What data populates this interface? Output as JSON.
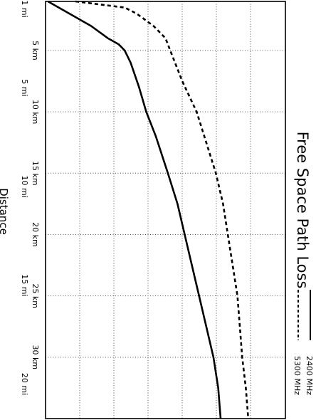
{
  "chart_data": {
    "type": "line",
    "title": "Free Space Path Loss",
    "xlabel": "Distance",
    "ylabel": "",
    "orientation": "rotated-90-clockwise",
    "x_unit": "km",
    "xlim": [
      1,
      35
    ],
    "x_ticks_km": [
      {
        "value": 5,
        "label": "5 km"
      },
      {
        "value": 10,
        "label": "10 km"
      },
      {
        "value": 15,
        "label": "15 km"
      },
      {
        "value": 20,
        "label": "20 km"
      },
      {
        "value": 25,
        "label": "25 km"
      },
      {
        "value": 30,
        "label": "30 km"
      }
    ],
    "x_ticks_mi": [
      {
        "value": 1,
        "label": "1 mi"
      },
      {
        "value": 5,
        "label": "5 mi"
      },
      {
        "value": 10,
        "label": "10 mi"
      },
      {
        "value": 15,
        "label": "15 mi"
      },
      {
        "value": 20,
        "label": "20 mi"
      }
    ],
    "grid": true,
    "legend_position": "bottom-right",
    "series": [
      {
        "name": "2400 MHz",
        "style": "solid",
        "color": "#000000",
        "points": [
          [
            1.0,
            0.01
          ],
          [
            2.0,
            0.1
          ],
          [
            3.0,
            0.19
          ],
          [
            4.0,
            0.26
          ],
          [
            4.5,
            0.305
          ],
          [
            5.0,
            0.33
          ],
          [
            6.0,
            0.355
          ],
          [
            8.0,
            0.39
          ],
          [
            10.0,
            0.42
          ],
          [
            12.0,
            0.46
          ],
          [
            15.0,
            0.51
          ],
          [
            17.5,
            0.55
          ],
          [
            20.0,
            0.58
          ],
          [
            22.5,
            0.61
          ],
          [
            25.0,
            0.64
          ],
          [
            27.5,
            0.67
          ],
          [
            30.0,
            0.7
          ],
          [
            32.5,
            0.72
          ],
          [
            35.0,
            0.73
          ]
        ]
      },
      {
        "name": "5300 MHz",
        "style": "dashed",
        "color": "#000000",
        "points": [
          [
            1.0,
            0.125
          ],
          [
            1.5,
            0.33
          ],
          [
            2.0,
            0.38
          ],
          [
            3.0,
            0.45
          ],
          [
            4.0,
            0.5
          ],
          [
            5.0,
            0.52
          ],
          [
            7.5,
            0.57
          ],
          [
            10.0,
            0.63
          ],
          [
            12.5,
            0.67
          ],
          [
            15.0,
            0.71
          ],
          [
            17.5,
            0.74
          ],
          [
            20.0,
            0.76
          ],
          [
            22.5,
            0.78
          ],
          [
            25.0,
            0.8
          ],
          [
            27.5,
            0.81
          ],
          [
            30.0,
            0.82
          ],
          [
            32.5,
            0.835
          ],
          [
            35.0,
            0.845
          ]
        ]
      }
    ]
  }
}
